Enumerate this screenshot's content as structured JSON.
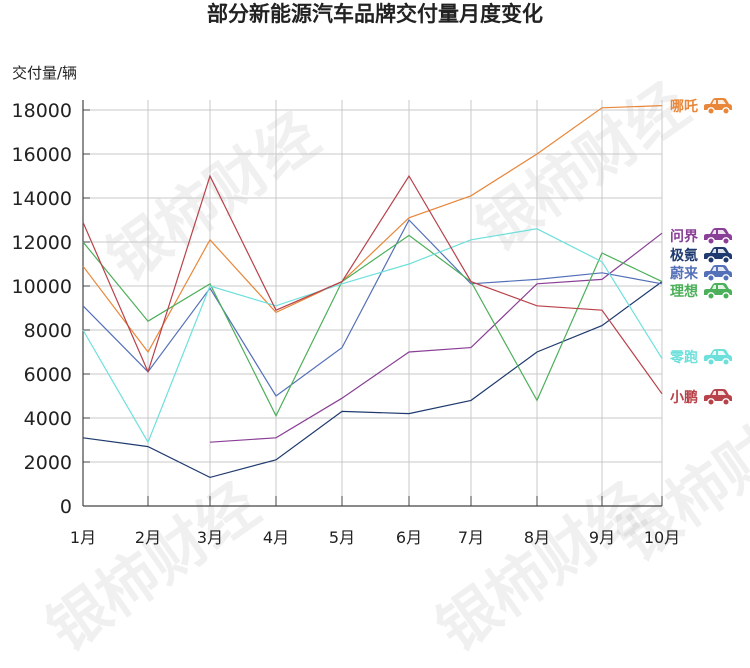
{
  "title": "部分新能源汽车品牌交付量月度变化",
  "y_axis_label": "交付量/辆",
  "watermark": "银柿财经",
  "chart_data": {
    "type": "line",
    "title": "部分新能源汽车品牌交付量月度变化",
    "xlabel": "",
    "ylabel": "交付量/辆",
    "categories": [
      "1月",
      "2月",
      "3月",
      "4月",
      "5月",
      "6月",
      "7月",
      "8月",
      "9月",
      "10月"
    ],
    "y_ticks": [
      0,
      2000,
      4000,
      6000,
      8000,
      10000,
      12000,
      14000,
      16000,
      18000
    ],
    "ylim": [
      0,
      18000
    ],
    "grid": true,
    "legend_position": "right (end-of-line labels with car icons)",
    "series": [
      {
        "name": "哪吒",
        "color": "#e8873a",
        "values": [
          10900,
          7000,
          12100,
          8800,
          10200,
          13100,
          14100,
          16000,
          18100,
          18200
        ]
      },
      {
        "name": "问界",
        "color": "#8a3f96",
        "values": [
          null,
          null,
          2900,
          3100,
          4900,
          7000,
          7200,
          10100,
          10300,
          12400
        ]
      },
      {
        "name": "极氪",
        "color": "#1f3a6e",
        "values": [
          3100,
          2700,
          1300,
          2100,
          4300,
          4200,
          4800,
          7000,
          8200,
          10200
        ]
      },
      {
        "name": "蔚来",
        "color": "#5470b8",
        "values": [
          9100,
          6100,
          9900,
          5000,
          7200,
          13000,
          10100,
          10300,
          10600,
          10100
        ]
      },
      {
        "name": "理想",
        "color": "#4caf5a",
        "values": [
          12000,
          8400,
          10100,
          4100,
          10200,
          12300,
          10200,
          4800,
          11500,
          10200
        ]
      },
      {
        "name": "零跑",
        "color": "#6ee0dc",
        "values": [
          8000,
          2900,
          10000,
          9100,
          10100,
          11000,
          12100,
          12600,
          11100,
          6700
        ]
      },
      {
        "name": "小鹏",
        "color": "#b8424a",
        "values": [
          12900,
          6100,
          15000,
          8900,
          10200,
          15000,
          10200,
          9100,
          8900,
          5100
        ]
      }
    ]
  },
  "legend": [
    {
      "name": "哪吒",
      "color": "#e8873a",
      "y": 97,
      "icon": "car-icon"
    },
    {
      "name": "问界",
      "color": "#8a3f96",
      "y": 227,
      "icon": "car-icon"
    },
    {
      "name": "极氪",
      "color": "#1f3a6e",
      "y": 246,
      "icon": "car-icon"
    },
    {
      "name": "蔚来",
      "color": "#5470b8",
      "y": 264,
      "icon": "car-icon"
    },
    {
      "name": "理想",
      "color": "#4caf5a",
      "y": 282,
      "icon": "car-icon"
    },
    {
      "name": "零跑",
      "color": "#6ee0dc",
      "y": 348,
      "icon": "car-icon"
    },
    {
      "name": "小鹏",
      "color": "#b8424a",
      "y": 388,
      "icon": "car-icon"
    }
  ]
}
